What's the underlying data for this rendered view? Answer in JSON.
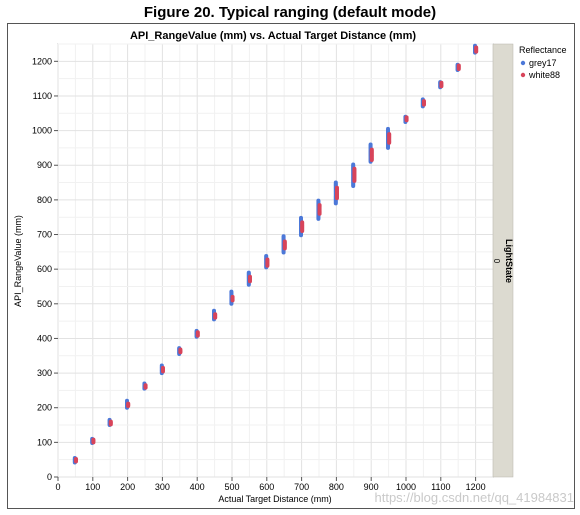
{
  "figure": {
    "title": "Figure 20. Typical ranging (default mode)",
    "watermark": "https://blog.csdn.net/qq_41984831"
  },
  "chart_data": {
    "type": "scatter",
    "title": "API_RangeValue (mm) vs. Actual Target Distance (mm)",
    "xlabel": "Actual Target Distance (mm)",
    "ylabel": "API_RangeValue (mm)",
    "xlim": [
      0,
      1250
    ],
    "ylim": [
      0,
      1250
    ],
    "xticks": [
      0,
      100,
      200,
      300,
      400,
      500,
      600,
      700,
      800,
      900,
      1000,
      1100,
      1200
    ],
    "yticks": [
      0,
      100,
      200,
      300,
      400,
      500,
      600,
      700,
      800,
      900,
      1000,
      1100,
      1200
    ],
    "grid": true,
    "legend": {
      "title": "Reflectance",
      "placement": "right"
    },
    "facet": {
      "title": "LightState",
      "value": "0"
    },
    "series": [
      {
        "name": "grey17",
        "color": "#4c78d8",
        "x": [
          50,
          100,
          150,
          200,
          250,
          300,
          350,
          400,
          450,
          500,
          550,
          600,
          650,
          700,
          750,
          800,
          850,
          900,
          950,
          1000,
          1050,
          1100,
          1150,
          1200
        ],
        "y_min": [
          42,
          98,
          150,
          200,
          255,
          300,
          355,
          405,
          455,
          500,
          555,
          605,
          648,
          698,
          745,
          790,
          840,
          910,
          950,
          1025,
          1070,
          1125,
          1175,
          1225
        ],
        "y_max": [
          55,
          110,
          165,
          220,
          270,
          322,
          372,
          422,
          480,
          535,
          590,
          638,
          695,
          748,
          798,
          850,
          902,
          960,
          1005,
          1040,
          1090,
          1140,
          1190,
          1245
        ]
      },
      {
        "name": "white88",
        "color": "#d8445a",
        "x": [
          50,
          100,
          150,
          200,
          250,
          300,
          350,
          400,
          450,
          500,
          550,
          600,
          650,
          700,
          750,
          800,
          850,
          900,
          950,
          1000,
          1050,
          1100,
          1150,
          1200
        ],
        "y_min": [
          45,
          100,
          152,
          205,
          258,
          305,
          360,
          408,
          460,
          510,
          565,
          610,
          660,
          710,
          760,
          805,
          855,
          915,
          965,
          1030,
          1075,
          1128,
          1178,
          1228
        ],
        "y_max": [
          52,
          108,
          160,
          212,
          265,
          315,
          368,
          418,
          470,
          520,
          578,
          628,
          680,
          735,
          785,
          835,
          890,
          945,
          990,
          1038,
          1085,
          1138,
          1188,
          1240
        ]
      }
    ]
  }
}
